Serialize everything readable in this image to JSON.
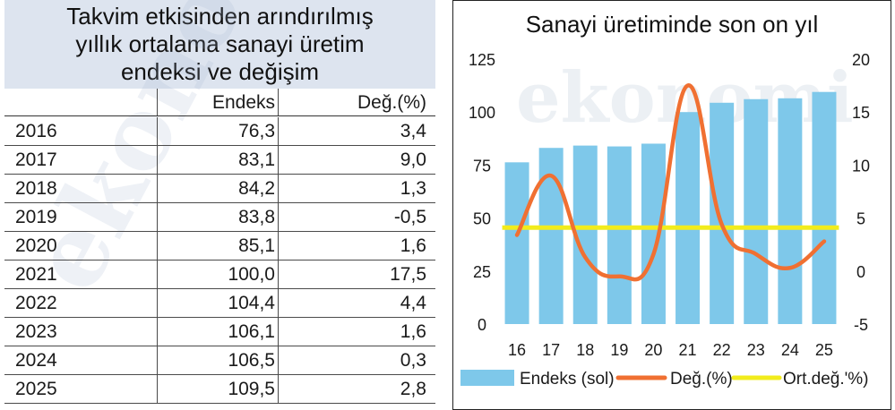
{
  "table": {
    "title_lines": [
      "Takvim etkisinden arındırılmış",
      "yıllık ortalama sanayi üretim",
      "endeksi ve değişim"
    ],
    "columns": [
      "",
      "Endeks",
      "Değ.(%)"
    ],
    "rows": [
      {
        "year": "2016",
        "index": "76,3",
        "change": "3,4"
      },
      {
        "year": "2017",
        "index": "83,1",
        "change": "9,0"
      },
      {
        "year": "2018",
        "index": "84,2",
        "change": "1,3"
      },
      {
        "year": "2019",
        "index": "83,8",
        "change": "-0,5"
      },
      {
        "year": "2020",
        "index": "85,1",
        "change": "1,6"
      },
      {
        "year": "2021",
        "index": "100,0",
        "change": "17,5"
      },
      {
        "year": "2022",
        "index": "104,4",
        "change": "4,4"
      },
      {
        "year": "2023",
        "index": "106,1",
        "change": "1,6"
      },
      {
        "year": "2024",
        "index": "106,5",
        "change": "0,3"
      },
      {
        "year": "2025",
        "index": "109,5",
        "change": "2,8"
      }
    ]
  },
  "watermark": "ekonomi",
  "chart_data": {
    "type": "bar",
    "title": "Sanayi üretiminde son on yıl",
    "categories": [
      "16",
      "17",
      "18",
      "19",
      "20",
      "21",
      "22",
      "23",
      "24",
      "25"
    ],
    "left_axis": {
      "ylim": [
        0,
        125
      ],
      "ticks": [
        "0",
        "25",
        "50",
        "75",
        "100",
        "125"
      ]
    },
    "right_axis": {
      "ylim": [
        -5,
        20
      ],
      "ticks": [
        "-5",
        "0",
        "5",
        "10",
        "15",
        "20"
      ]
    },
    "series": [
      {
        "name": "Endeks (sol)",
        "type": "bar",
        "axis": "left",
        "color": "#7ec8ea",
        "values": [
          76.3,
          83.1,
          84.2,
          83.8,
          85.1,
          100.0,
          104.4,
          106.1,
          106.5,
          109.5
        ]
      },
      {
        "name": "Değ.(%)",
        "type": "line",
        "axis": "right",
        "color": "#f07032",
        "values": [
          3.4,
          9.0,
          1.3,
          -0.5,
          1.6,
          17.5,
          4.4,
          1.6,
          0.3,
          2.8
        ]
      },
      {
        "name": "Ort.değ.'%)",
        "type": "line",
        "axis": "right",
        "color": "#f2ec1c",
        "values": [
          4.1,
          4.1,
          4.1,
          4.1,
          4.1,
          4.1,
          4.1,
          4.1,
          4.1,
          4.1
        ]
      }
    ],
    "legend_position": "bottom"
  }
}
